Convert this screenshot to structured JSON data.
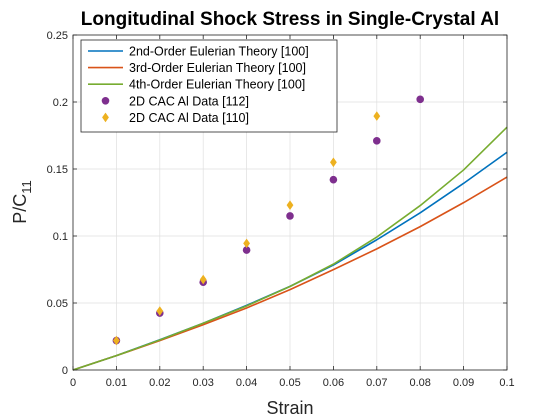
{
  "chart_data": {
    "type": "line",
    "title": "Longitudinal Shock Stress in Single-Crystal Al",
    "xlabel": "Strain",
    "ylabel_main": "P/C",
    "ylabel_sub": "11",
    "xlim": [
      0,
      0.1
    ],
    "ylim": [
      0,
      0.25
    ],
    "x_ticks": [
      0,
      0.01,
      0.02,
      0.03,
      0.04,
      0.05,
      0.06,
      0.07,
      0.08,
      0.09,
      0.1
    ],
    "x_tick_labels": [
      "0",
      "0.01",
      "0.02",
      "0.03",
      "0.04",
      "0.05",
      "0.06",
      "0.07",
      "0.08",
      "0.09",
      "0.1"
    ],
    "y_ticks": [
      0,
      0.05,
      0.1,
      0.15,
      0.2,
      0.25
    ],
    "y_tick_labels": [
      "0",
      "0.05",
      "0.1",
      "0.15",
      "0.2",
      "0.25"
    ],
    "grid": true,
    "legend_position": "top-left",
    "series": [
      {
        "name": "2nd-Order Eulerian Theory [100]",
        "kind": "line",
        "color": "#0072BD",
        "x": [
          0,
          0.01,
          0.02,
          0.03,
          0.04,
          0.05,
          0.06,
          0.07,
          0.08,
          0.09,
          0.1
        ],
        "y": [
          0,
          0.0107,
          0.0226,
          0.0349,
          0.0482,
          0.0624,
          0.0783,
          0.0972,
          0.1173,
          0.1393,
          0.1625
        ]
      },
      {
        "name": "3rd-Order Eulerian Theory [100]",
        "kind": "line",
        "color": "#D95319",
        "x": [
          0,
          0.01,
          0.02,
          0.03,
          0.04,
          0.05,
          0.06,
          0.07,
          0.08,
          0.09,
          0.1
        ],
        "y": [
          0,
          0.0107,
          0.0219,
          0.0338,
          0.0463,
          0.06,
          0.0749,
          0.0904,
          0.107,
          0.1249,
          0.144
        ]
      },
      {
        "name": "4th-Order Eulerian Theory [100]",
        "kind": "line",
        "color": "#77AC30",
        "x": [
          0,
          0.01,
          0.02,
          0.03,
          0.04,
          0.05,
          0.06,
          0.07,
          0.08,
          0.09,
          0.1
        ],
        "y": [
          0,
          0.0107,
          0.0224,
          0.0349,
          0.0478,
          0.0623,
          0.079,
          0.0992,
          0.1227,
          0.1493,
          0.1812
        ]
      },
      {
        "name": "2D CAC Al Data [112]",
        "kind": "scatter",
        "marker": "circle",
        "color": "#7E2F8E",
        "x": [
          0.01,
          0.02,
          0.03,
          0.04,
          0.05,
          0.06,
          0.07,
          0.08
        ],
        "y": [
          0.022,
          0.0425,
          0.0655,
          0.0895,
          0.115,
          0.142,
          0.171,
          0.202
        ]
      },
      {
        "name": "2D CAC Al Data [110]",
        "kind": "scatter",
        "marker": "diamond",
        "color": "#EDB120",
        "x": [
          0.01,
          0.02,
          0.03,
          0.04,
          0.05,
          0.06,
          0.07
        ],
        "y": [
          0.022,
          0.044,
          0.0675,
          0.0945,
          0.123,
          0.155,
          0.1895
        ]
      }
    ]
  }
}
